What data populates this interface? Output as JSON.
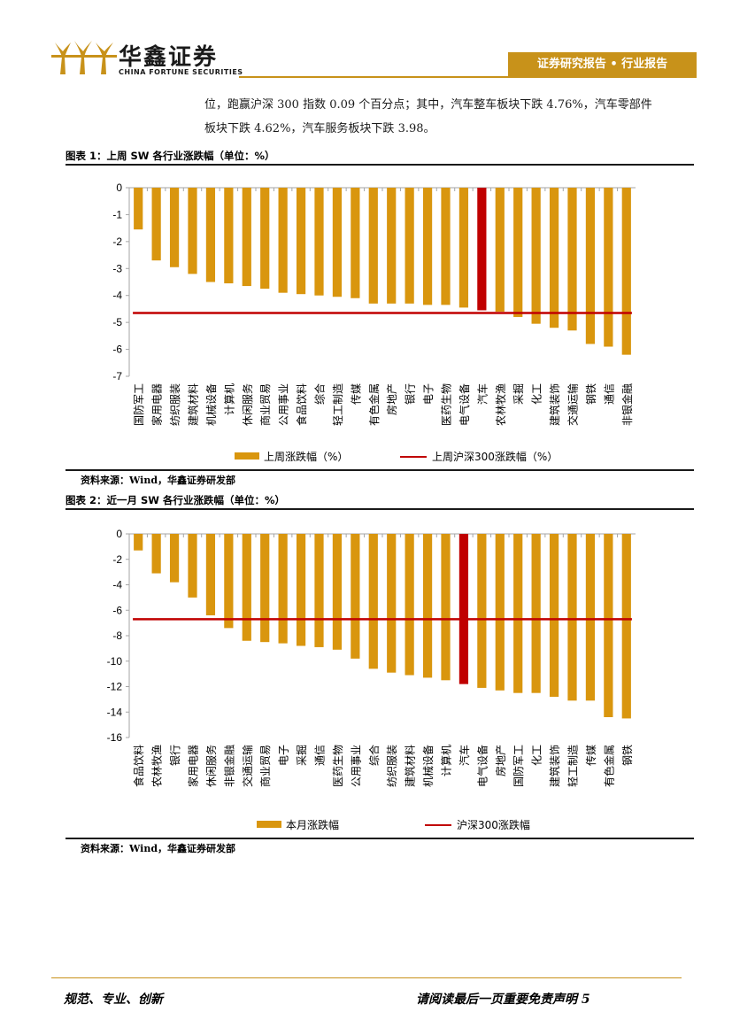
{
  "header": {
    "logo_cn": "华鑫证券",
    "logo_en": "CHINA FORTUNE SECURITIES",
    "report_type": "证券研究报告 • 行业报告"
  },
  "intro": {
    "line1": "位，跑赢沪深 300 指数 0.09 个百分点；其中，汽车整车板块下跌 4.76%，汽车零部件",
    "line2": "板块下跌 4.62%，汽车服务板块下跌 3.98。"
  },
  "figure1": {
    "title": "图表 1：上周 SW 各行业涨跌幅（单位：%）",
    "source": "资料来源：Wind，华鑫证券研发部"
  },
  "figure2": {
    "title": "图表 2：近一月 SW 各行业涨跌幅（单位：%）",
    "source": "资料来源：Wind，华鑫证券研发部"
  },
  "chart_data": [
    {
      "type": "bar",
      "categories": [
        "国防军工",
        "家用电器",
        "纺织服装",
        "建筑材料",
        "机械设备",
        "计算机",
        "休闲服务",
        "商业贸易",
        "公用事业",
        "食品饮料",
        "综合",
        "轻工制造",
        "传媒",
        "有色金属",
        "房地产",
        "银行",
        "电子",
        "医药生物",
        "电气设备",
        "汽车",
        "农林牧渔",
        "采掘",
        "化工",
        "建筑装饰",
        "交通运输",
        "钢铁",
        "通信",
        "非银金融"
      ],
      "values": [
        -1.55,
        -2.7,
        -2.95,
        -3.2,
        -3.5,
        -3.55,
        -3.65,
        -3.75,
        -3.9,
        -3.95,
        -4.0,
        -4.05,
        -4.1,
        -4.3,
        -4.3,
        -4.3,
        -4.35,
        -4.35,
        -4.45,
        -4.55,
        -4.6,
        -4.8,
        -5.05,
        -5.2,
        -5.3,
        -5.8,
        -5.9,
        -6.2
      ],
      "highlight": "汽车",
      "reference_line": -4.65,
      "ylim": [
        -7,
        0
      ],
      "yticks": [
        "0",
        "-1",
        "-2",
        "-3",
        "-4",
        "-5",
        "-6",
        "-7"
      ],
      "legend": [
        "上周涨跌幅（%）",
        "上周沪深300涨跌幅（%）"
      ],
      "colors": {
        "bar": "#d9960e",
        "highlight": "#c00000",
        "line": "#c00000"
      }
    },
    {
      "type": "bar",
      "categories": [
        "食品饮料",
        "农林牧渔",
        "银行",
        "家用电器",
        "休闲服务",
        "非银金融",
        "交通运输",
        "商业贸易",
        "电子",
        "采掘",
        "通信",
        "医药生物",
        "公用事业",
        "综合",
        "纺织服装",
        "建筑材料",
        "机械设备",
        "计算机",
        "汽车",
        "电气设备",
        "房地产",
        "国防军工",
        "化工",
        "建筑装饰",
        "轻工制造",
        "传媒",
        "有色金属",
        "钢铁"
      ],
      "values": [
        -1.3,
        -3.1,
        -3.8,
        -5.0,
        -6.4,
        -7.4,
        -8.4,
        -8.5,
        -8.6,
        -8.8,
        -8.9,
        -9.1,
        -9.8,
        -10.6,
        -10.9,
        -11.1,
        -11.3,
        -11.5,
        -11.8,
        -12.1,
        -12.3,
        -12.5,
        -12.5,
        -12.8,
        -13.1,
        -13.1,
        -14.4,
        -14.5
      ],
      "highlight": "汽车",
      "reference_line": -6.7,
      "ylim": [
        -16,
        0
      ],
      "yticks": [
        "0",
        "-2",
        "-4",
        "-6",
        "-8",
        "-10",
        "-12",
        "-14",
        "-16"
      ],
      "legend": [
        "本月涨跌幅",
        "沪深300涨跌幅"
      ],
      "colors": {
        "bar": "#d9960e",
        "highlight": "#c00000",
        "line": "#c00000"
      }
    }
  ],
  "footer": {
    "left": "规范、专业、创新",
    "right": "请阅读最后一页重要免责声明 5"
  }
}
